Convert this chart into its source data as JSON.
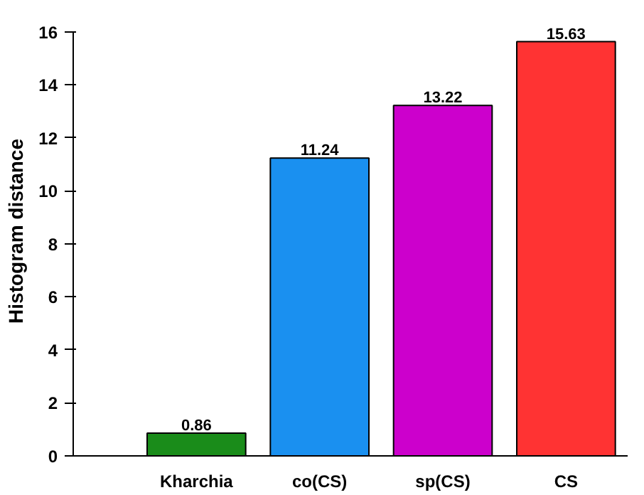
{
  "chart_data": {
    "type": "bar",
    "ylabel": "Histogram distance",
    "categories": [
      "Kharchia",
      "co(CS)",
      "sp(CS)",
      "CS"
    ],
    "values": [
      0.86,
      11.24,
      13.22,
      15.63
    ],
    "colors": [
      "#1a8c1a",
      "#1a90f0",
      "#cc00cc",
      "#ff3333"
    ],
    "ylim": [
      0,
      16
    ],
    "yticks": [
      0,
      2,
      4,
      6,
      8,
      10,
      12,
      14,
      16
    ],
    "data_labels": true,
    "grid": false
  }
}
